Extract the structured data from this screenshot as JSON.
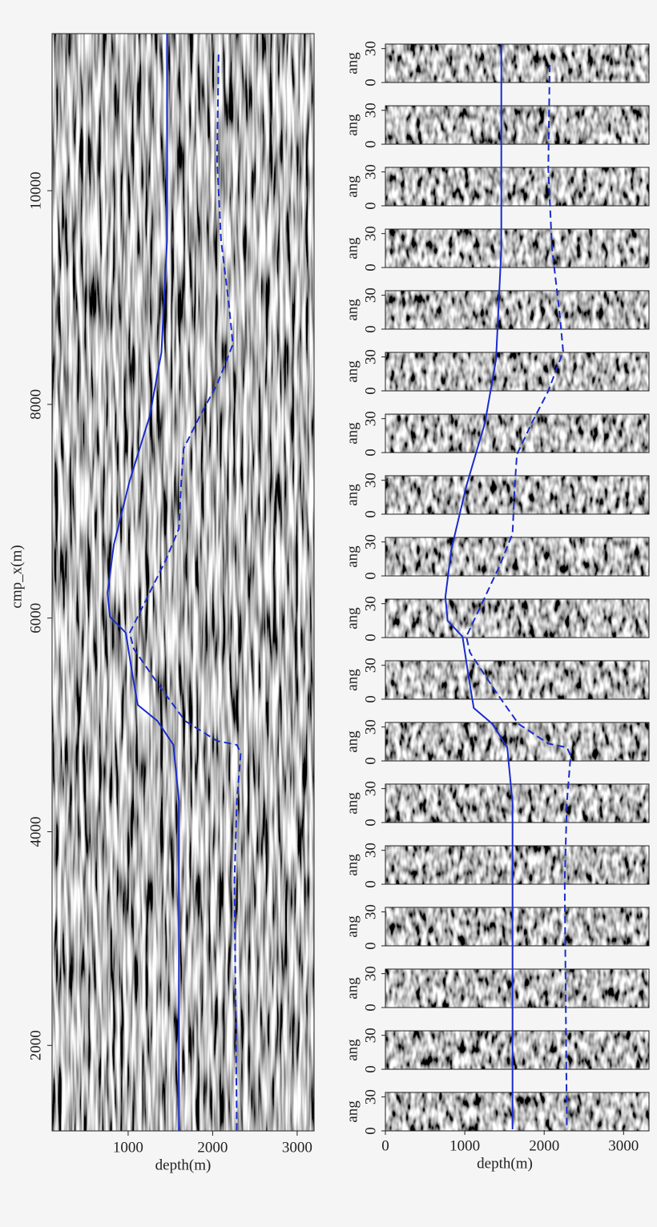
{
  "chart_data": [
    {
      "type": "line",
      "xlabel": "depth(m)",
      "ylabel": "cmp_x(m)",
      "xlim": [
        100,
        3200
      ],
      "ylim": [
        1200,
        11470
      ],
      "xticks": [
        1000,
        2000,
        3000
      ],
      "yticks": [
        2000,
        4000,
        6000,
        8000,
        10000
      ],
      "series": [
        {
          "style": "solid",
          "color": "#1a2ccc",
          "x": [
            1460,
            1460,
            1394,
            1254,
            1019,
            831,
            756,
            784,
            972,
            1047,
            1113,
            1347,
            1535,
            1601,
            1601
          ],
          "y": [
            11470,
            9535,
            8486,
            7886,
            7286,
            6687,
            6237,
            6012,
            5862,
            5487,
            5187,
            5037,
            4813,
            4288,
            1200
          ]
        },
        {
          "style": "dashed",
          "color": "#1a2ccc",
          "x": [
            2070,
            2052,
            2099,
            2192,
            2239,
            2052,
            1845,
            1657,
            1629,
            1601,
            1441,
            1160,
            1019,
            1066,
            1394,
            1676,
            2052,
            2286,
            2333,
            2286,
            2258,
            2286
          ],
          "y": [
            11274,
            10285,
            9535,
            8936,
            8561,
            8186,
            7886,
            7586,
            7286,
            6837,
            6537,
            6087,
            5862,
            5712,
            5337,
            5037,
            4850,
            4813,
            4738,
            4288,
            3538,
            1200
          ]
        }
      ]
    },
    {
      "type": "gathers",
      "xlabel": "depth(m)",
      "ylabel": "ang",
      "xlim": [
        0,
        3320
      ],
      "xticks": [
        0,
        1000,
        2000,
        3000
      ],
      "gather_ylim": [
        0,
        34
      ],
      "gather_yticks": [
        0,
        30
      ],
      "cmp_x": [
        11288,
        10704,
        10121,
        9537,
        8954,
        8370,
        7786,
        7203,
        6619,
        6035,
        5452,
        4868,
        4285,
        3701,
        3118,
        2534,
        1950,
        1367
      ]
    }
  ]
}
